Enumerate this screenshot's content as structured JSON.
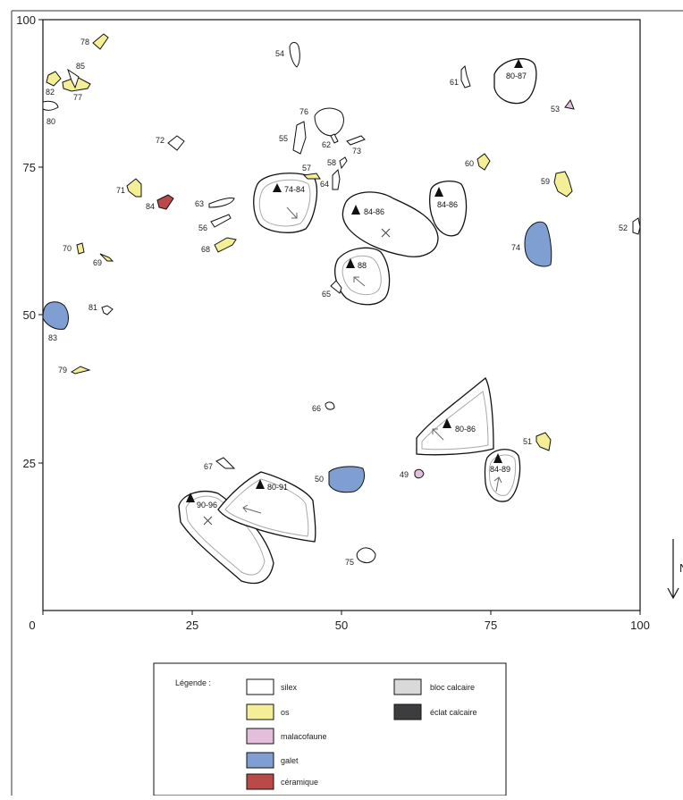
{
  "axis": {
    "y_ticks": [
      "100",
      "75",
      "50",
      "25"
    ],
    "x_ticks": [
      "0",
      "25",
      "50",
      "75",
      "100"
    ]
  },
  "north": {
    "label": "N"
  },
  "colors": {
    "silex": "#ffffff",
    "os": "#f4ef97",
    "malacofaune": "#e3bfdc",
    "galet": "#7f9fd3",
    "ceramique": "#b94a48",
    "bloc_calcaire": "#d9d9d9",
    "eclat_calcaire": "#3d3d3f",
    "outline": "#111111"
  },
  "objects": [
    {
      "id": "78",
      "type": "os"
    },
    {
      "id": "85",
      "type": "silex"
    },
    {
      "id": "82",
      "type": "os"
    },
    {
      "id": "77",
      "type": "os"
    },
    {
      "id": "80",
      "type": "silex"
    },
    {
      "id": "54",
      "type": "silex"
    },
    {
      "id": "76",
      "type": "silex"
    },
    {
      "id": "55",
      "type": "silex"
    },
    {
      "id": "62",
      "type": "silex"
    },
    {
      "id": "73",
      "type": "silex"
    },
    {
      "id": "72",
      "type": "silex"
    },
    {
      "id": "58",
      "type": "silex"
    },
    {
      "id": "57",
      "type": "os"
    },
    {
      "id": "64",
      "type": "silex"
    },
    {
      "id": "71",
      "type": "os"
    },
    {
      "id": "84",
      "type": "ceramique"
    },
    {
      "id": "63",
      "type": "silex"
    },
    {
      "id": "56",
      "type": "silex"
    },
    {
      "id": "68",
      "type": "os"
    },
    {
      "id": "70",
      "type": "os"
    },
    {
      "id": "69",
      "type": "os"
    },
    {
      "id": "81",
      "type": "silex"
    },
    {
      "id": "83",
      "type": "galet"
    },
    {
      "id": "79",
      "type": "os"
    },
    {
      "id": "61",
      "type": "silex"
    },
    {
      "id": "53",
      "type": "malacofaune"
    },
    {
      "id": "60",
      "type": "os"
    },
    {
      "id": "59",
      "type": "os"
    },
    {
      "id": "52",
      "type": "silex"
    },
    {
      "id": "74",
      "type": "galet"
    },
    {
      "id": "65",
      "type": "silex"
    },
    {
      "id": "66",
      "type": "silex"
    },
    {
      "id": "67",
      "type": "silex"
    },
    {
      "id": "50",
      "type": "galet"
    },
    {
      "id": "49",
      "type": "malacofaune"
    },
    {
      "id": "51",
      "type": "os"
    },
    {
      "id": "75",
      "type": "silex"
    }
  ],
  "blocks": [
    {
      "elevation": "80-87"
    },
    {
      "elevation": "74-84"
    },
    {
      "elevation": "84-86"
    },
    {
      "elevation": "84-86"
    },
    {
      "elevation": "88"
    },
    {
      "elevation": "80-86"
    },
    {
      "elevation": "84-89"
    },
    {
      "elevation": "80-91"
    },
    {
      "elevation": "90-96"
    }
  ],
  "legend": {
    "title": "Légende :",
    "items": [
      {
        "label": "silex",
        "color": "#ffffff"
      },
      {
        "label": "os",
        "color": "#f4ef97"
      },
      {
        "label": "malacofaune",
        "color": "#e3bfdc"
      },
      {
        "label": "galet",
        "color": "#7f9fd3"
      },
      {
        "label": "céramique",
        "color": "#b94a48"
      },
      {
        "label": "bloc calcaire",
        "color": "#d9d9d9"
      },
      {
        "label": "éclat calcaire",
        "color": "#3d3d3f"
      }
    ]
  }
}
